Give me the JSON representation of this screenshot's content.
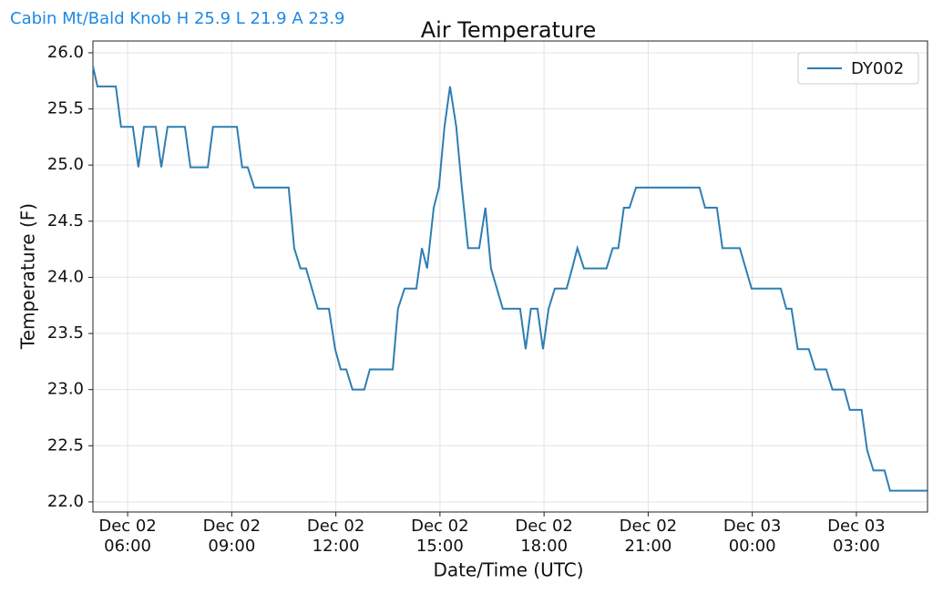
{
  "header": "Cabin Mt/Bald Knob H 25.9 L 21.9 A 23.9",
  "chart_data": {
    "type": "line",
    "title": "Air Temperature",
    "x_label": "Date/Time (UTC)",
    "y_label": "Temperature (F)",
    "x": [
      5.0,
      5.13,
      5.66,
      5.81,
      6.15,
      6.31,
      6.47,
      6.81,
      6.97,
      7.15,
      7.65,
      7.81,
      8.31,
      8.46,
      9.15,
      9.3,
      9.46,
      9.65,
      10.64,
      10.8,
      10.98,
      11.14,
      11.48,
      11.8,
      11.98,
      12.14,
      12.3,
      12.48,
      12.82,
      12.98,
      13.64,
      13.79,
      13.98,
      14.32,
      14.48,
      14.63,
      14.82,
      14.97,
      15.13,
      15.29,
      15.47,
      15.63,
      15.81,
      16.13,
      16.31,
      16.47,
      16.81,
      17.31,
      17.47,
      17.62,
      17.81,
      17.97,
      18.13,
      18.31,
      18.65,
      18.81,
      18.96,
      19.15,
      19.8,
      19.98,
      20.14,
      20.3,
      20.46,
      20.65,
      22.48,
      22.64,
      22.98,
      23.14,
      23.64,
      23.98,
      24.82,
      24.98,
      25.13,
      25.31,
      25.63,
      25.81,
      26.13,
      26.31,
      26.65,
      26.81,
      27.15,
      27.31,
      27.49,
      27.81,
      27.97,
      29.04
    ],
    "series": [
      {
        "name": "DY002",
        "color": "#2e7eb3",
        "values": [
          25.88,
          25.7,
          25.7,
          25.34,
          25.34,
          24.98,
          25.34,
          25.34,
          24.98,
          25.34,
          25.34,
          24.98,
          24.98,
          25.34,
          25.34,
          24.98,
          24.98,
          24.8,
          24.8,
          24.26,
          24.08,
          24.08,
          23.72,
          23.72,
          23.36,
          23.18,
          23.18,
          23.0,
          23.0,
          23.18,
          23.18,
          23.72,
          23.9,
          23.9,
          24.26,
          24.08,
          24.62,
          24.8,
          25.34,
          25.7,
          25.34,
          24.8,
          24.26,
          24.26,
          24.62,
          24.08,
          23.72,
          23.72,
          23.36,
          23.72,
          23.72,
          23.36,
          23.72,
          23.9,
          23.9,
          24.08,
          24.26,
          24.08,
          24.08,
          24.26,
          24.26,
          24.62,
          24.62,
          24.8,
          24.8,
          24.62,
          24.62,
          24.26,
          24.26,
          23.9,
          23.9,
          23.72,
          23.72,
          23.36,
          23.36,
          23.18,
          23.18,
          23.0,
          23.0,
          22.82,
          22.82,
          22.46,
          22.28,
          22.28,
          22.1,
          22.1
        ]
      }
    ],
    "xlim": [
      5.0,
      29.05
    ],
    "ylim": [
      21.91,
      26.105
    ],
    "xticks": [
      {
        "value": 6,
        "label": "Dec 02\n06:00"
      },
      {
        "value": 9,
        "label": "Dec 02\n09:00"
      },
      {
        "value": 12,
        "label": "Dec 02\n12:00"
      },
      {
        "value": 15,
        "label": "Dec 02\n15:00"
      },
      {
        "value": 18,
        "label": "Dec 02\n18:00"
      },
      {
        "value": 21,
        "label": "Dec 02\n21:00"
      },
      {
        "value": 24,
        "label": "Dec 03\n00:00"
      },
      {
        "value": 27,
        "label": "Dec 03\n03:00"
      }
    ],
    "yticks": [
      {
        "value": 22,
        "label": "22.0"
      },
      22.5,
      {
        "value": 23,
        "label": "23.0"
      },
      23.5,
      {
        "value": 24,
        "label": "24.0"
      },
      24.5,
      {
        "value": 25,
        "label": "25.0"
      },
      25.5,
      {
        "value": 26,
        "label": "26.0"
      }
    ],
    "grid": true,
    "legend": "upper right"
  }
}
